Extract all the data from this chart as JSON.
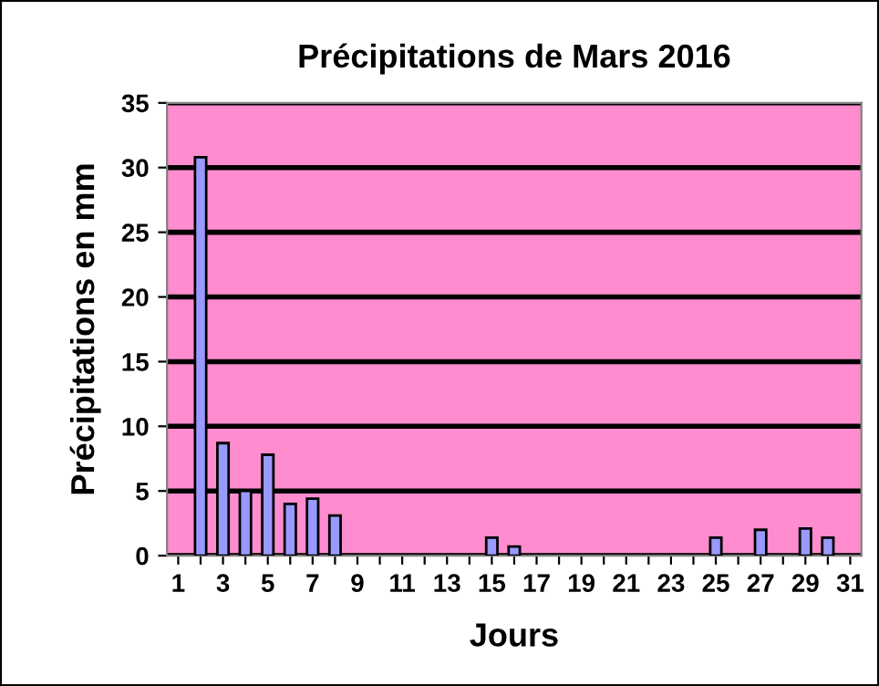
{
  "chart_data": {
    "type": "bar",
    "title": "Précipitations de Mars 2016",
    "xlabel": "Jours",
    "ylabel": "Précipitations en mm",
    "categories": [
      "1",
      null,
      "3",
      null,
      "5",
      null,
      "7",
      null,
      "9",
      null,
      "11",
      null,
      "13",
      null,
      "15",
      null,
      "17",
      null,
      "19",
      null,
      "21",
      null,
      "23",
      null,
      "25",
      null,
      "27",
      null,
      "29",
      null,
      "31"
    ],
    "values": [
      0,
      30.8,
      8.7,
      5.0,
      7.8,
      4.0,
      4.4,
      3.1,
      0,
      0,
      0,
      0,
      0,
      0,
      1.4,
      0.7,
      0,
      0,
      0,
      0,
      0,
      0,
      0,
      0,
      1.4,
      0,
      2.0,
      0,
      2.1,
      1.4,
      0
    ],
    "color": "#9999ff",
    "ylim": [
      0,
      35
    ],
    "yticks": [
      0,
      5,
      10,
      15,
      20,
      25,
      30,
      35
    ],
    "grid": "y"
  }
}
